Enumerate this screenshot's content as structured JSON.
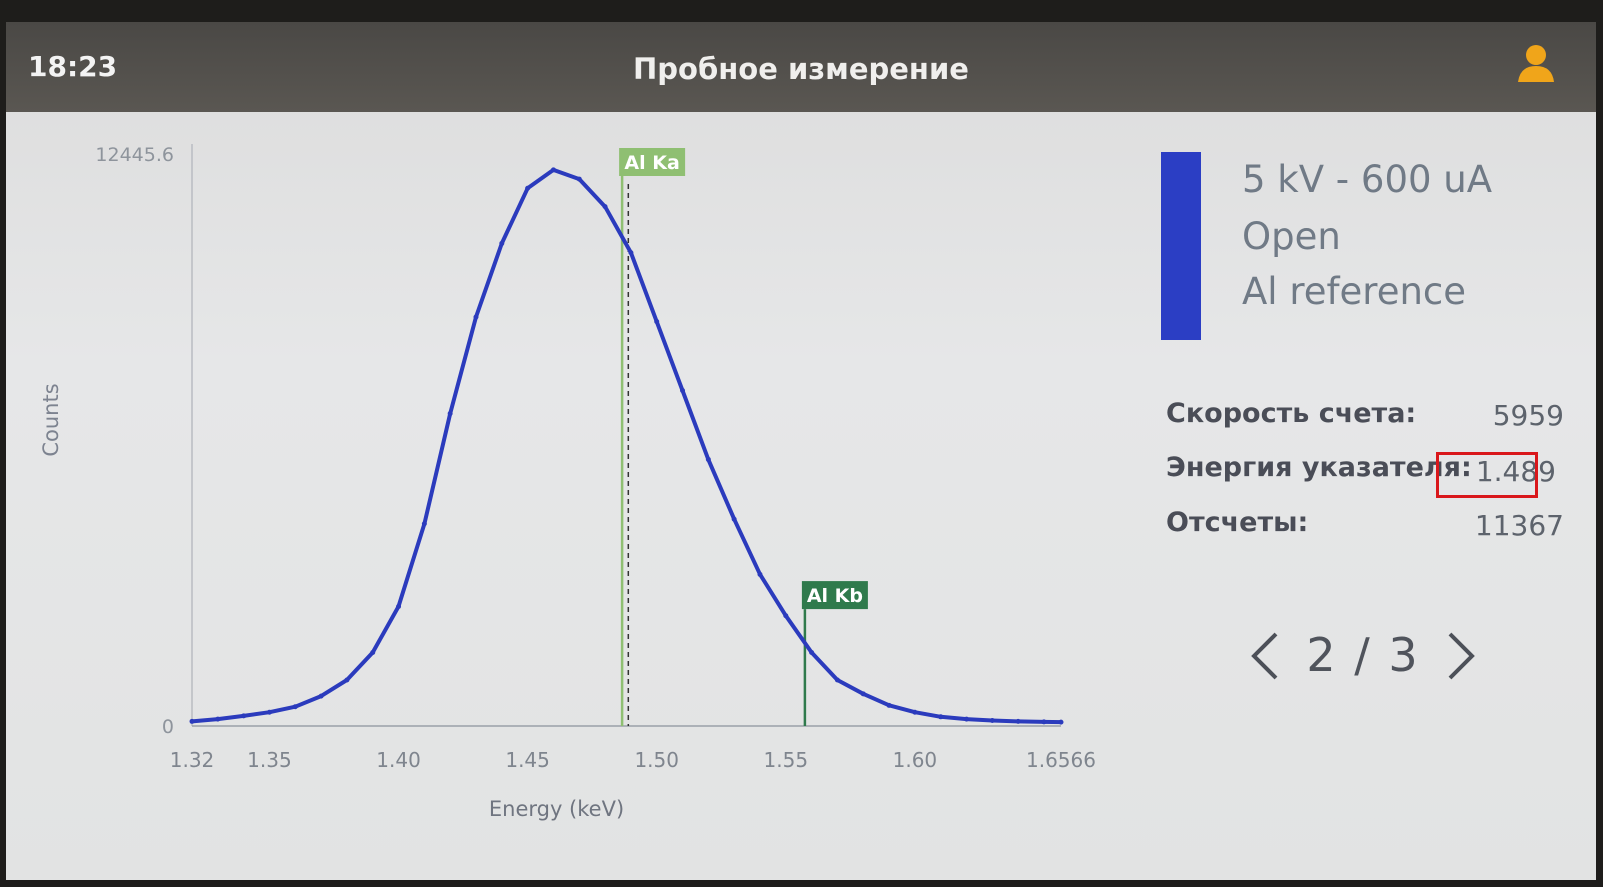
{
  "header": {
    "time": "18:23",
    "title": "Пробное измерение",
    "user_icon": "user-icon"
  },
  "chart_data": {
    "type": "line",
    "x": [
      1.32,
      1.33,
      1.34,
      1.35,
      1.36,
      1.37,
      1.38,
      1.39,
      1.4,
      1.41,
      1.42,
      1.43,
      1.44,
      1.45,
      1.46,
      1.47,
      1.48,
      1.49,
      1.5,
      1.51,
      1.52,
      1.53,
      1.54,
      1.55,
      1.56,
      1.57,
      1.58,
      1.59,
      1.6,
      1.61,
      1.62,
      1.63,
      1.64,
      1.65,
      1.6566
    ],
    "values": [
      100,
      150,
      220,
      300,
      420,
      650,
      1000,
      1600,
      2600,
      4400,
      6800,
      8900,
      10500,
      11700,
      12100,
      11900,
      11300,
      10300,
      8800,
      7300,
      5800,
      4500,
      3300,
      2400,
      1600,
      1000,
      700,
      450,
      300,
      200,
      150,
      120,
      100,
      90,
      85
    ],
    "xlim": [
      1.32,
      1.6566
    ],
    "ylim": [
      0,
      12445.6
    ],
    "xticks": [
      "1.32",
      "1.35",
      "1.40",
      "1.45",
      "1.50",
      "1.55",
      "1.60",
      "1.6566"
    ],
    "xtick_values": [
      1.32,
      1.35,
      1.4,
      1.45,
      1.5,
      1.55,
      1.6,
      1.6566
    ],
    "yticks": [
      "0",
      "12445.6"
    ],
    "ytick_values": [
      0,
      12445.6
    ],
    "xlabel": "Energy (keV)",
    "ylabel": "Counts",
    "markers": [
      {
        "label": "Al Ka",
        "energy": 1.4866,
        "color": "#8fbf72"
      },
      {
        "label": "Al Kb",
        "energy": 1.5574,
        "color": "#2f7a4c"
      }
    ],
    "cursor_energy": 1.489,
    "line_color": "#2b3bbd"
  },
  "info": {
    "lines": [
      "5 kV - 600 uA",
      "Open",
      "Al reference"
    ],
    "bar_color": "#2b3ec4"
  },
  "stats": {
    "rate_label": "Скорость счета:",
    "rate_value": "5959",
    "energy_label": "Энергия указателя:",
    "energy_value": "1.489",
    "counts_label": "Отсчеты:",
    "counts_value": "11367"
  },
  "pager": {
    "page": "2 / 3",
    "prev_icon": "chevron-left-icon",
    "next_icon": "chevron-right-icon"
  }
}
